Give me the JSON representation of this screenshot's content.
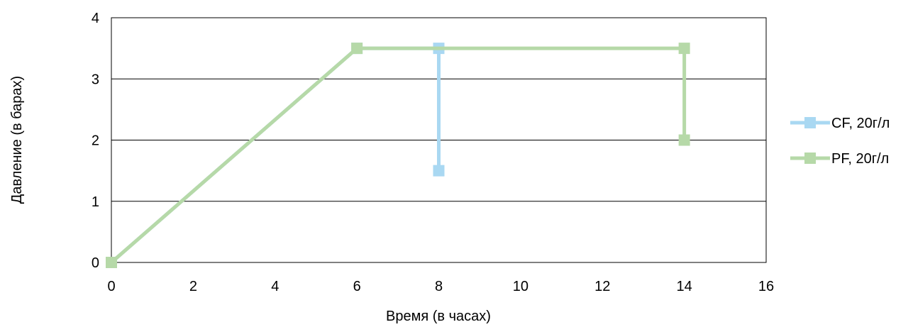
{
  "chart_data": {
    "type": "line",
    "title": "",
    "xlabel": "Время (в часах)",
    "ylabel": "Давление (в барах)",
    "xlim": [
      0,
      16
    ],
    "ylim": [
      0,
      4
    ],
    "x_ticks": [
      "0",
      "2",
      "4",
      "6",
      "8",
      "10",
      "12",
      "14",
      "16"
    ],
    "y_ticks": [
      "0",
      "1",
      "2",
      "3",
      "4"
    ],
    "grid": "horizontal",
    "legend_position": "right",
    "series": [
      {
        "name": "CF, 20г/л",
        "color": "#a9d8f2",
        "points": [
          [
            0,
            0
          ],
          [
            6,
            3.5
          ],
          [
            8,
            3.5
          ],
          [
            8,
            1.5
          ]
        ]
      },
      {
        "name": "PF, 20г/л",
        "color": "#b6d9a8",
        "points": [
          [
            0,
            0
          ],
          [
            6,
            3.5
          ],
          [
            14,
            3.5
          ],
          [
            14,
            2
          ]
        ]
      }
    ]
  }
}
